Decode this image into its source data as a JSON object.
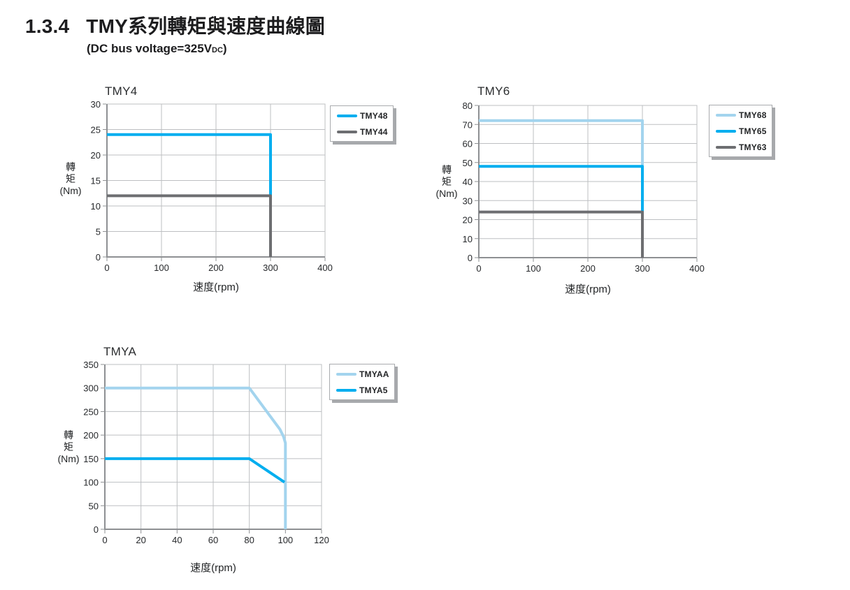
{
  "page": {
    "heading_number": "1.3.4",
    "heading_title": "TMY系列轉矩與速度曲線圖",
    "subtitle_prefix": "(DC bus voltage=325V",
    "subtitle_sub": "DC",
    "subtitle_suffix": ")"
  },
  "colors": {
    "cyan": "#00AEEF",
    "light_blue": "#A3D4EE",
    "dark_gray": "#6D6E71",
    "grid": "#BDBFC2",
    "axis": "#8E9093",
    "text": "#26282B"
  },
  "chart_data": [
    {
      "id": "tmy4",
      "type": "line",
      "title": "TMY4",
      "xlabel": "速度(rpm)",
      "ylabel": "轉矩(Nm)",
      "ylabel_lines": [
        "轉",
        "矩",
        "(Nm)"
      ],
      "xlim": [
        0,
        400
      ],
      "xticks": [
        0,
        100,
        200,
        300,
        400
      ],
      "ylim": [
        0,
        30
      ],
      "yticks": [
        0,
        5,
        10,
        15,
        20,
        25,
        30
      ],
      "grid": true,
      "legend_position": "outside-top-right",
      "series": [
        {
          "name": "TMY48",
          "color": "#00AEEF",
          "points": [
            [
              0,
              24
            ],
            [
              300,
              24
            ],
            [
              300,
              12
            ]
          ]
        },
        {
          "name": "TMY44",
          "color": "#6D6E71",
          "points": [
            [
              0,
              12
            ],
            [
              300,
              12
            ],
            [
              300,
              0
            ]
          ]
        }
      ]
    },
    {
      "id": "tmy6",
      "type": "line",
      "title": "TMY6",
      "xlabel": "速度(rpm)",
      "ylabel": "轉矩(Nm)",
      "ylabel_lines": [
        "轉",
        "矩",
        "(Nm)"
      ],
      "xlim": [
        0,
        400
      ],
      "xticks": [
        0,
        100,
        200,
        300,
        400
      ],
      "ylim": [
        0,
        80
      ],
      "yticks": [
        0,
        10,
        20,
        30,
        40,
        50,
        60,
        70,
        80
      ],
      "grid": true,
      "legend_position": "outside-top-right",
      "series": [
        {
          "name": "TMY68",
          "color": "#A3D4EE",
          "points": [
            [
              0,
              72
            ],
            [
              300,
              72
            ],
            [
              300,
              48
            ]
          ]
        },
        {
          "name": "TMY65",
          "color": "#00AEEF",
          "points": [
            [
              0,
              48
            ],
            [
              300,
              48
            ],
            [
              300,
              24
            ]
          ]
        },
        {
          "name": "TMY63",
          "color": "#6D6E71",
          "points": [
            [
              0,
              24
            ],
            [
              300,
              24
            ],
            [
              300,
              0
            ]
          ]
        }
      ]
    },
    {
      "id": "tmya",
      "type": "line",
      "title": "TMYA",
      "xlabel": "速度(rpm)",
      "ylabel": "轉矩(Nm)",
      "ylabel_lines": [
        "轉",
        "矩",
        "(Nm)"
      ],
      "xlim": [
        0,
        120
      ],
      "xticks": [
        0,
        20,
        40,
        60,
        80,
        100,
        120
      ],
      "ylim": [
        0,
        350
      ],
      "yticks": [
        0,
        50,
        100,
        150,
        200,
        250,
        300,
        350
      ],
      "grid": true,
      "legend_position": "outside-top-right",
      "series": [
        {
          "name": "TMYAA",
          "color": "#A3D4EE",
          "points": [
            [
              0,
              300
            ],
            [
              80,
              300
            ],
            [
              97,
              212
            ],
            [
              99,
              196
            ],
            [
              100,
              183
            ],
            [
              100,
              0
            ]
          ]
        },
        {
          "name": "TMYA5",
          "color": "#00AEEF",
          "points": [
            [
              0,
              150
            ],
            [
              80,
              150
            ],
            [
              99.5,
              100
            ]
          ]
        }
      ]
    }
  ]
}
